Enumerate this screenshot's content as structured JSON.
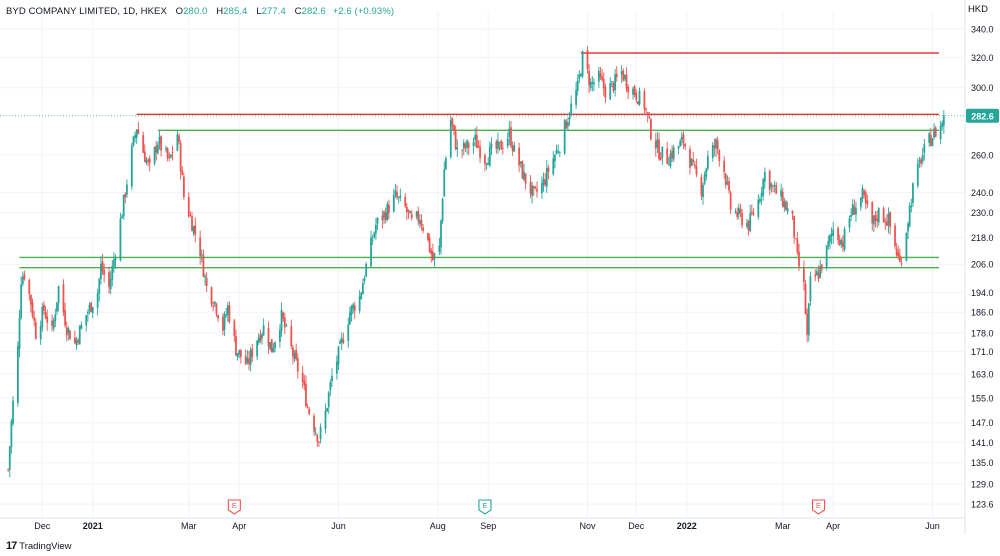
{
  "header": {
    "symbol": "BYD COMPANY LIMITED, 1D, HKEX",
    "o_label": "O",
    "o_value": "280.0",
    "h_label": "H",
    "h_value": "285.4",
    "l_label": "L",
    "l_value": "277.4",
    "c_label": "C",
    "c_value": "282.6",
    "change": "+2.6 (+0.93%)"
  },
  "currency": "HKD",
  "branding": {
    "mark": "17",
    "name": "TradingView"
  },
  "colors": {
    "up": "#26a69a",
    "down": "#ef5350",
    "support": "#4caf50",
    "resistance": "#e53935",
    "price_label_bg": "#26a69a"
  },
  "chart_data": {
    "type": "candlestick",
    "scale": "log",
    "ylim": [
      120,
      348
    ],
    "ytick_labels": [
      "340.0",
      "320.0",
      "300.0",
      "260.0",
      "240.0",
      "230.0",
      "218.0",
      "206.0",
      "194.0",
      "186.0",
      "178.0",
      "171.0",
      "163.0",
      "155.0",
      "147.0",
      "141.0",
      "135.0",
      "129.0",
      "123.6"
    ],
    "xtick_labels": [
      "Dec",
      "2021",
      "Mar",
      "Apr",
      "Jun",
      "Aug",
      "Sep",
      "Nov",
      "Dec",
      "2022",
      "Mar",
      "Apr",
      "Jun"
    ],
    "last_price": "282.6",
    "earnings_markers": [
      {
        "date": "2021-03-29",
        "label": "E"
      },
      {
        "date": "2021-08-30",
        "label": "E"
      },
      {
        "date": "2022-03-23",
        "label": "E"
      }
    ],
    "horizontal_lines": [
      {
        "name": "resistance",
        "start": "2021-10-28",
        "end": "2022-06-16",
        "price": 323
      },
      {
        "name": "resistance",
        "start": "2021-01-28",
        "end": "2022-06-16",
        "price": 283.5
      },
      {
        "name": "support",
        "start": "2021-02-10",
        "end": "2022-06-16",
        "price": 274
      },
      {
        "name": "support",
        "start": "2020-11-17",
        "end": "2022-06-16",
        "price": 209
      },
      {
        "name": "support",
        "start": "2020-11-17",
        "end": "2022-06-16",
        "price": 204.5
      }
    ],
    "close_path": [
      [
        "2020-11-10",
        133
      ],
      [
        "2020-11-12",
        147
      ],
      [
        "2020-11-16",
        172
      ],
      [
        "2020-11-18",
        200
      ],
      [
        "2020-11-20",
        202
      ],
      [
        "2020-11-24",
        190
      ],
      [
        "2020-11-27",
        178
      ],
      [
        "2020-12-02",
        187
      ],
      [
        "2020-12-07",
        178
      ],
      [
        "2020-12-11",
        196
      ],
      [
        "2020-12-16",
        180
      ],
      [
        "2020-12-21",
        174
      ],
      [
        "2020-12-28",
        185
      ],
      [
        "2021-01-04",
        194
      ],
      [
        "2021-01-06",
        205
      ],
      [
        "2021-01-11",
        196
      ],
      [
        "2021-01-15",
        212
      ],
      [
        "2021-01-20",
        235
      ],
      [
        "2021-01-25",
        262
      ],
      [
        "2021-01-28",
        276
      ],
      [
        "2021-02-01",
        262
      ],
      [
        "2021-02-05",
        252
      ],
      [
        "2021-02-10",
        268
      ],
      [
        "2021-02-17",
        256
      ],
      [
        "2021-02-22",
        272
      ],
      [
        "2021-02-26",
        238
      ],
      [
        "2021-03-03",
        225
      ],
      [
        "2021-03-08",
        212
      ],
      [
        "2021-03-12",
        196
      ],
      [
        "2021-03-17",
        190
      ],
      [
        "2021-03-22",
        180
      ],
      [
        "2021-03-25",
        188
      ],
      [
        "2021-03-30",
        172
      ],
      [
        "2021-04-06",
        166
      ],
      [
        "2021-04-12",
        176
      ],
      [
        "2021-04-16",
        180
      ],
      [
        "2021-04-21",
        172
      ],
      [
        "2021-04-27",
        184
      ],
      [
        "2021-04-30",
        178
      ],
      [
        "2021-05-05",
        168
      ],
      [
        "2021-05-10",
        160
      ],
      [
        "2021-05-13",
        152
      ],
      [
        "2021-05-17",
        146
      ],
      [
        "2021-05-20",
        142
      ],
      [
        "2021-05-24",
        150
      ],
      [
        "2021-05-28",
        162
      ],
      [
        "2021-06-02",
        172
      ],
      [
        "2021-06-08",
        186
      ],
      [
        "2021-06-14",
        192
      ],
      [
        "2021-06-18",
        205
      ],
      [
        "2021-06-24",
        224
      ],
      [
        "2021-06-30",
        230
      ],
      [
        "2021-07-06",
        238
      ],
      [
        "2021-07-12",
        232
      ],
      [
        "2021-07-16",
        225
      ],
      [
        "2021-07-21",
        228
      ],
      [
        "2021-07-26",
        216
      ],
      [
        "2021-07-29",
        208
      ],
      [
        "2021-08-02",
        213
      ],
      [
        "2021-08-05",
        252
      ],
      [
        "2021-08-09",
        280
      ],
      [
        "2021-08-13",
        262
      ],
      [
        "2021-08-18",
        264
      ],
      [
        "2021-08-24",
        268
      ],
      [
        "2021-08-30",
        258
      ],
      [
        "2021-09-03",
        262
      ],
      [
        "2021-09-08",
        264
      ],
      [
        "2021-09-14",
        272
      ],
      [
        "2021-09-17",
        262
      ],
      [
        "2021-09-23",
        248
      ],
      [
        "2021-09-29",
        238
      ],
      [
        "2021-10-05",
        245
      ],
      [
        "2021-10-11",
        258
      ],
      [
        "2021-10-15",
        266
      ],
      [
        "2021-10-20",
        282
      ],
      [
        "2021-10-26",
        300
      ],
      [
        "2021-10-29",
        320
      ],
      [
        "2021-11-03",
        302
      ],
      [
        "2021-11-08",
        306
      ],
      [
        "2021-11-12",
        298
      ],
      [
        "2021-11-17",
        302
      ],
      [
        "2021-11-22",
        310
      ],
      [
        "2021-11-26",
        302
      ],
      [
        "2021-12-01",
        296
      ],
      [
        "2021-12-06",
        289
      ],
      [
        "2021-12-10",
        273
      ],
      [
        "2021-12-15",
        262
      ],
      [
        "2021-12-20",
        258
      ],
      [
        "2021-12-24",
        262
      ],
      [
        "2021-12-30",
        268
      ],
      [
        "2022-01-05",
        252
      ],
      [
        "2022-01-10",
        242
      ],
      [
        "2022-01-14",
        258
      ],
      [
        "2022-01-19",
        266
      ],
      [
        "2022-01-24",
        252
      ],
      [
        "2022-01-28",
        232
      ],
      [
        "2022-02-08",
        224
      ],
      [
        "2022-02-14",
        236
      ],
      [
        "2022-02-18",
        250
      ],
      [
        "2022-02-23",
        242
      ],
      [
        "2022-03-01",
        236
      ],
      [
        "2022-03-07",
        226
      ],
      [
        "2022-03-10",
        208
      ],
      [
        "2022-03-14",
        196
      ],
      [
        "2022-03-16",
        176
      ],
      [
        "2022-03-18",
        198
      ],
      [
        "2022-03-23",
        202
      ],
      [
        "2022-03-28",
        212
      ],
      [
        "2022-04-01",
        222
      ],
      [
        "2022-04-07",
        216
      ],
      [
        "2022-04-12",
        230
      ],
      [
        "2022-04-19",
        238
      ],
      [
        "2022-04-25",
        224
      ],
      [
        "2022-04-29",
        230
      ],
      [
        "2022-05-05",
        226
      ],
      [
        "2022-05-09",
        214
      ],
      [
        "2022-05-12",
        206
      ],
      [
        "2022-05-16",
        222
      ],
      [
        "2022-05-20",
        242
      ],
      [
        "2022-05-25",
        258
      ],
      [
        "2022-05-30",
        268
      ],
      [
        "2022-06-02",
        272
      ],
      [
        "2022-06-06",
        276
      ],
      [
        "2022-06-08",
        282.6
      ]
    ]
  }
}
